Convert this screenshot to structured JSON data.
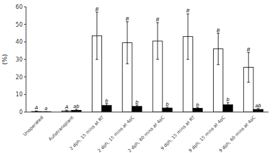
{
  "chart_data": {
    "type": "bar",
    "ylabel": "(%)",
    "categories": [
      "Unoperated",
      "Autotransplant",
      "2 dph, 15 mins at RT",
      "2 dph, 15 mins at 4oC",
      "2 dph, 60 mins at 4oC",
      "9 dph, 15 mins at RT",
      "9 dph, 15 mins at 4oC",
      "9 dph, 60 mins at 4oC"
    ],
    "series": [
      {
        "color": "#ffffff",
        "values": [
          0.3,
          0.6,
          43.5,
          39.5,
          40.5,
          43.0,
          36.0,
          25.5
        ],
        "errors": [
          0.3,
          0.5,
          13.5,
          12.0,
          10.5,
          13.0,
          9.0,
          8.5
        ],
        "labels": [
          "A",
          "A",
          "B",
          "B",
          "B",
          "B",
          "B",
          "B"
        ]
      },
      {
        "color": "#000000",
        "values": [
          0.15,
          1.0,
          3.8,
          3.2,
          2.3,
          2.1,
          4.2,
          1.5
        ],
        "errors": [
          0.15,
          0.6,
          1.0,
          0.8,
          0.5,
          0.4,
          1.2,
          0.5
        ],
        "labels": [
          "a",
          "ab",
          "b",
          "b",
          "b",
          "b",
          "b",
          "ab"
        ]
      }
    ],
    "ylim": [
      0,
      60
    ],
    "yticks": [
      0,
      10,
      20,
      30,
      40,
      50,
      60
    ],
    "grid": false
  }
}
